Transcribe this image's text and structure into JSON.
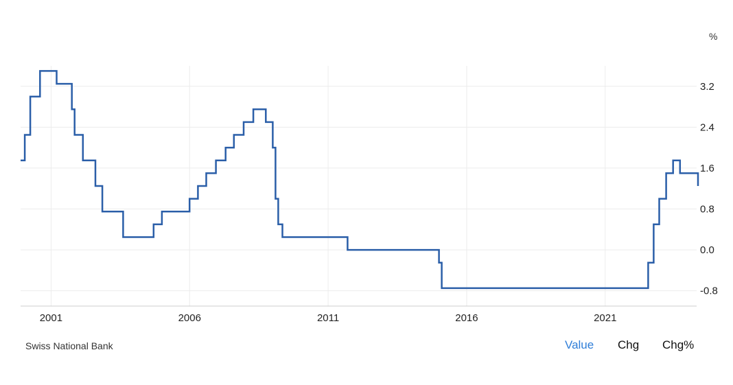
{
  "chart_data": {
    "type": "line",
    "unit_label": "%",
    "source": "Swiss National Bank",
    "x_ticks": [
      "2001",
      "2006",
      "2011",
      "2016",
      "2021"
    ],
    "y_ticks": [
      "3.2",
      "2.4",
      "1.6",
      "0.8",
      "0.0",
      "-0.8"
    ],
    "xlim": [
      1999.9,
      2024.3
    ],
    "ylim": [
      -1.1,
      3.6
    ],
    "grid": true,
    "line_color": "#2a5ea8",
    "series": [
      {
        "step": "post",
        "x": [
          1999.9,
          2000.05,
          2000.25,
          2000.6,
          2001.2,
          2001.75,
          2001.85,
          2002.15,
          2002.6,
          2002.85,
          2003.6,
          2004.7,
          2005.0,
          2006.0,
          2006.3,
          2006.6,
          2006.95,
          2007.3,
          2007.6,
          2007.95,
          2008.3,
          2008.75,
          2009.0,
          2009.1,
          2009.2,
          2009.35,
          2009.6,
          2011.7,
          2015.0,
          2015.1,
          2022.55,
          2022.75,
          2022.95,
          2023.2,
          2023.45,
          2023.7,
          2024.35
        ],
        "y": [
          1.75,
          2.25,
          3.0,
          3.5,
          3.25,
          2.75,
          2.25,
          1.75,
          1.25,
          0.75,
          0.25,
          0.5,
          0.75,
          1.0,
          1.25,
          1.5,
          1.75,
          2.0,
          2.25,
          2.5,
          2.75,
          2.5,
          2.0,
          1.0,
          0.5,
          0.25,
          0.25,
          0.0,
          -0.25,
          -0.75,
          -0.25,
          0.5,
          1.0,
          1.5,
          1.75,
          1.5,
          1.25
        ]
      }
    ]
  },
  "tabs": {
    "value": "Value",
    "chg": "Chg",
    "chgpct": "Chg%"
  }
}
